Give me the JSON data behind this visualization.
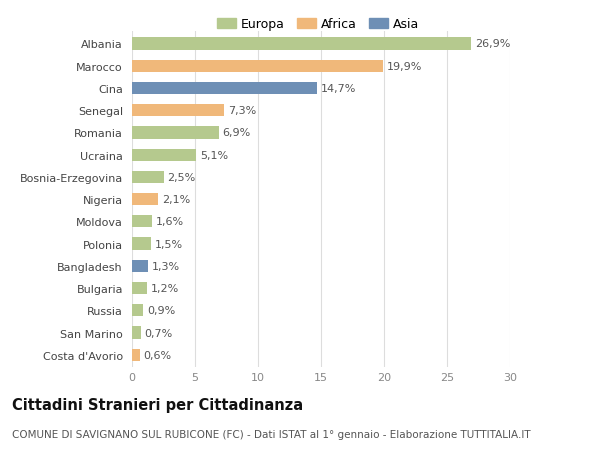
{
  "countries": [
    "Albania",
    "Marocco",
    "Cina",
    "Senegal",
    "Romania",
    "Ucraina",
    "Bosnia-Erzegovina",
    "Nigeria",
    "Moldova",
    "Polonia",
    "Bangladesh",
    "Bulgaria",
    "Russia",
    "San Marino",
    "Costa d'Avorio"
  ],
  "values": [
    26.9,
    19.9,
    14.7,
    7.3,
    6.9,
    5.1,
    2.5,
    2.1,
    1.6,
    1.5,
    1.3,
    1.2,
    0.9,
    0.7,
    0.6
  ],
  "labels": [
    "26,9%",
    "19,9%",
    "14,7%",
    "7,3%",
    "6,9%",
    "5,1%",
    "2,5%",
    "2,1%",
    "1,6%",
    "1,5%",
    "1,3%",
    "1,2%",
    "0,9%",
    "0,7%",
    "0,6%"
  ],
  "continents": [
    "Europa",
    "Africa",
    "Asia",
    "Africa",
    "Europa",
    "Europa",
    "Europa",
    "Africa",
    "Europa",
    "Europa",
    "Asia",
    "Europa",
    "Europa",
    "Europa",
    "Africa"
  ],
  "colors": {
    "Europa": "#b5c98e",
    "Africa": "#f0b87a",
    "Asia": "#6e8fb5"
  },
  "xlim": [
    0,
    30
  ],
  "xticks": [
    0,
    5,
    10,
    15,
    20,
    25,
    30
  ],
  "title": "Cittadini Stranieri per Cittadinanza",
  "subtitle": "COMUNE DI SAVIGNANO SUL RUBICONE (FC) - Dati ISTAT al 1° gennaio - Elaborazione TUTTITALIA.IT",
  "background_color": "#ffffff",
  "grid_color": "#dddddd",
  "bar_height": 0.55,
  "label_fontsize": 8,
  "ytick_fontsize": 8,
  "xtick_fontsize": 8,
  "title_fontsize": 10.5,
  "subtitle_fontsize": 7.5,
  "legend_fontsize": 9
}
